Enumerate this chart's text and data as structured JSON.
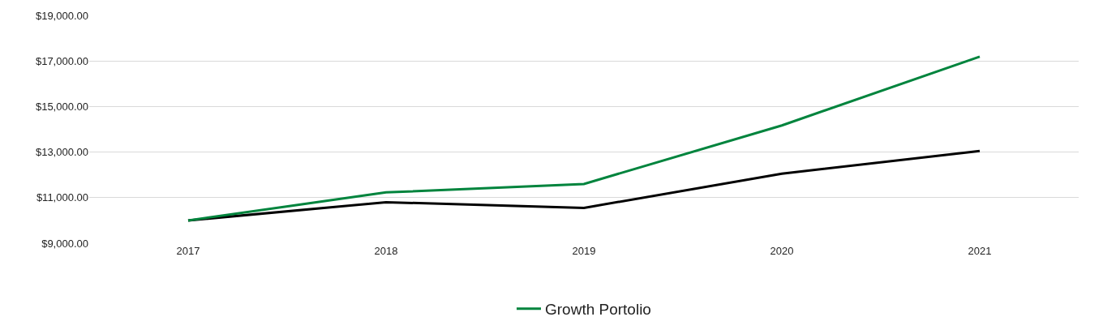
{
  "chart_data": {
    "type": "line",
    "categories": [
      "2017",
      "2018",
      "2019",
      "2020",
      "2021"
    ],
    "series": [
      {
        "color": "#000000",
        "values": [
          10000,
          10800,
          10550,
          12050,
          13050
        ]
      },
      {
        "name": "Growth Portolio",
        "color": "#00843d",
        "values": [
          10000,
          11230,
          11600,
          14170,
          17190
        ]
      }
    ],
    "ylim": [
      9000,
      19000
    ],
    "yticks": [
      {
        "value": 9000,
        "label": "$9,000.00"
      },
      {
        "value": 11000,
        "label": "$11,000.00"
      },
      {
        "value": 13000,
        "label": "$13,000.00"
      },
      {
        "value": 15000,
        "label": "$15,000.00"
      },
      {
        "value": 17000,
        "label": "$17,000.00"
      },
      {
        "value": 19000,
        "label": "$19,000.00"
      }
    ],
    "grid": "y",
    "legend": "bottom",
    "marker": "none",
    "line_style": "solid"
  }
}
